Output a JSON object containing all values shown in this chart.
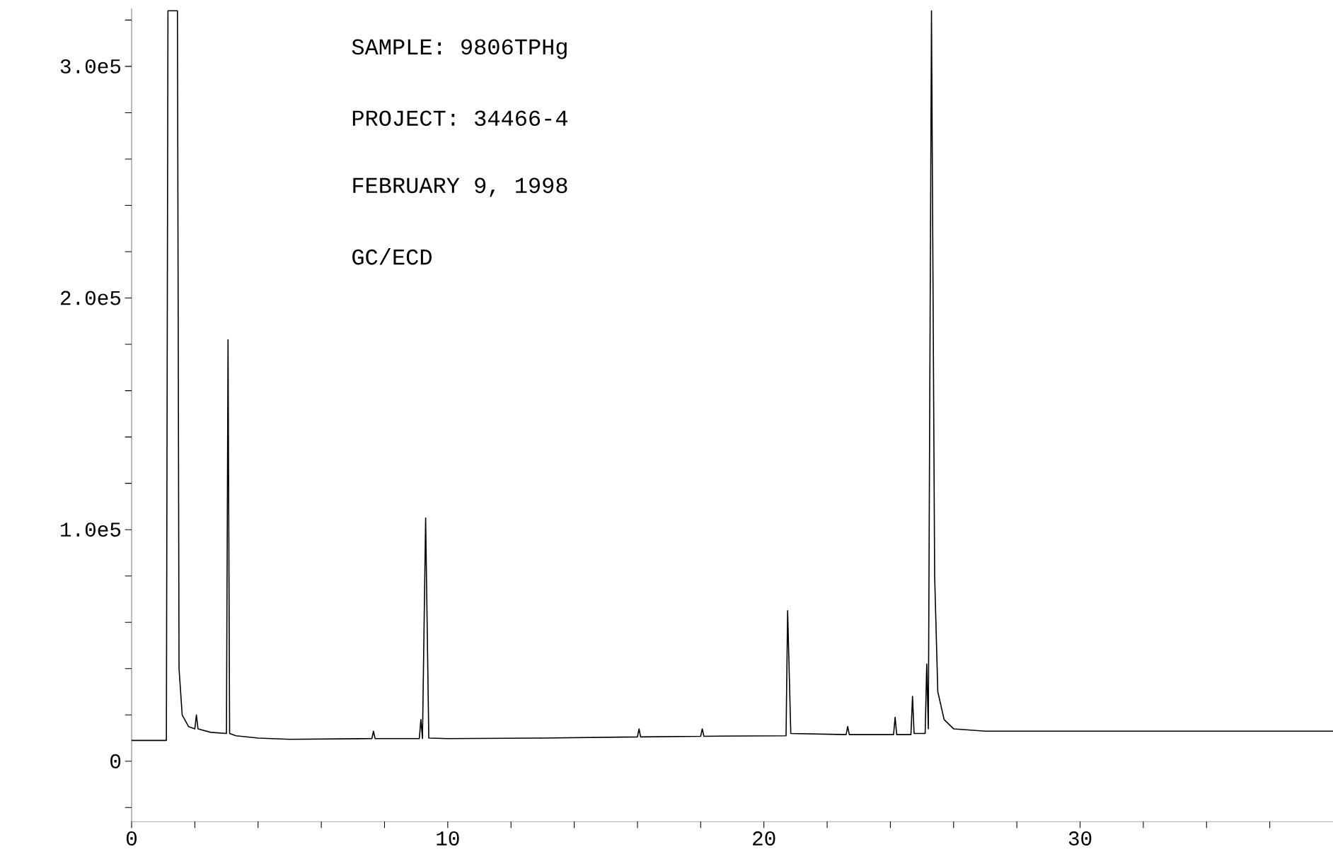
{
  "chart_data": {
    "type": "line",
    "annotations": [
      "SAMPLE:  9806TPHg",
      "PROJECT:  34466-4",
      "FEBRUARY 9, 1998",
      "GC/ECD"
    ],
    "series": [
      {
        "color": "#000000",
        "x": [
          0,
          1.1,
          1.15,
          1.45,
          1.5,
          1.6,
          1.8,
          2.0,
          2.05,
          2.1,
          2.5,
          3.0,
          3.05,
          3.1,
          3.3,
          4.0,
          5.0,
          7.6,
          7.65,
          7.7,
          9.1,
          9.15,
          9.2,
          9.3,
          9.4,
          10.0,
          13.0,
          16.0,
          16.05,
          16.1,
          18.0,
          18.05,
          18.1,
          20.7,
          20.75,
          20.85,
          22.6,
          22.65,
          22.7,
          24.1,
          24.15,
          24.2,
          24.65,
          24.7,
          24.75,
          25.1,
          25.15,
          25.2,
          25.3,
          25.4,
          25.5,
          25.7,
          26.0,
          27.0,
          38.0
        ],
        "values": [
          9000,
          9000,
          324000,
          324000,
          40000,
          20000,
          15000,
          14000,
          20000,
          14000,
          12500,
          12000,
          182000,
          12000,
          11000,
          10000,
          9500,
          9800,
          13000,
          9800,
          9800,
          18000,
          9800,
          105000,
          10000,
          9800,
          10000,
          10500,
          14000,
          10500,
          10800,
          14000,
          10800,
          11000,
          65000,
          12000,
          11500,
          15000,
          11500,
          11500,
          19000,
          11500,
          11500,
          28000,
          12000,
          12000,
          42000,
          14000,
          324000,
          80000,
          30000,
          18000,
          14000,
          13000,
          13000
        ]
      }
    ],
    "xlim": [
      0,
      38
    ],
    "ylim": [
      -26000,
      325000
    ],
    "xticks": [
      0,
      {
        "value": 2,
        "label": null
      },
      {
        "value": 4,
        "label": null
      },
      {
        "value": 6,
        "label": null
      },
      {
        "value": 8,
        "label": null
      },
      10,
      {
        "value": 12,
        "label": null
      },
      {
        "value": 14,
        "label": null
      },
      {
        "value": 16,
        "label": null
      },
      {
        "value": 18,
        "label": null
      },
      20,
      {
        "value": 22,
        "label": null
      },
      {
        "value": 24,
        "label": null
      },
      {
        "value": 26,
        "label": null
      },
      {
        "value": 28,
        "label": null
      },
      30,
      {
        "value": 32,
        "label": null
      },
      {
        "value": 34,
        "label": null
      },
      {
        "value": 36,
        "label": null
      }
    ],
    "yticks": [
      {
        "value": -20000,
        "label": null
      },
      0,
      {
        "value": 20000,
        "label": null
      },
      {
        "value": 40000,
        "label": null
      },
      {
        "value": 60000,
        "label": null
      },
      {
        "value": 80000,
        "label": null
      },
      {
        "value": 100000,
        "label": "1.0e5"
      },
      {
        "value": 120000,
        "label": null
      },
      {
        "value": 140000,
        "label": null
      },
      {
        "value": 160000,
        "label": null
      },
      {
        "value": 180000,
        "label": null
      },
      {
        "value": 200000,
        "label": "2.0e5"
      },
      {
        "value": 220000,
        "label": null
      },
      {
        "value": 240000,
        "label": null
      },
      {
        "value": 260000,
        "label": null
      },
      {
        "value": 280000,
        "label": null
      },
      {
        "value": 300000,
        "label": "3.0e5"
      },
      {
        "value": 320000,
        "label": null
      }
    ],
    "marker": "none",
    "line_style": "solid"
  }
}
